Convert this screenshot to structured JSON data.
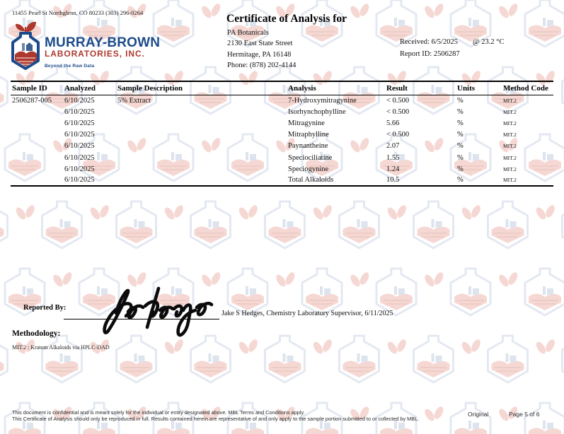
{
  "header": {
    "lab_address": "11455 Pearl St Northglenn, CO 80233 (303) 296-0264",
    "logo": {
      "name": "MURRAY-BROWN",
      "subname": "LABORATORIES, INC.",
      "tagline": "Beyond the Raw Data"
    },
    "title": "Certificate of Analysis for",
    "client": {
      "name": "PA Botanicals",
      "address_line1": "2130 East State Street",
      "address_line2": "Hermitage, PA 16148",
      "phone": "Phone:  (878) 202-4144"
    },
    "received": "Received:  6/5/2025",
    "received_temp": "@ 23.2 °C",
    "report_id": "Report ID:  2506287"
  },
  "table": {
    "columns": [
      "Sample ID",
      "Analyzed",
      "Sample Description",
      "Analysis",
      "Result",
      "Units",
      "Method Code"
    ],
    "rows": [
      {
        "sample_id": "2506287-005",
        "analyzed": "6/10/2025",
        "description": "5% Extract",
        "analysis": "7-Hydroxymitragynine",
        "result": "< 0.500",
        "units": "%",
        "method": "MIT.2"
      },
      {
        "sample_id": "",
        "analyzed": "6/10/2025",
        "description": "",
        "analysis": "Isorhynchophylline",
        "result": "< 0.500",
        "units": "%",
        "method": "MIT.2"
      },
      {
        "sample_id": "",
        "analyzed": "6/10/2025",
        "description": "",
        "analysis": "Mitragynine",
        "result": "5.66",
        "units": "%",
        "method": "MIT.2"
      },
      {
        "sample_id": "",
        "analyzed": "6/10/2025",
        "description": "",
        "analysis": "Mitraphylline",
        "result": "< 0.500",
        "units": "%",
        "method": "MIT.2"
      },
      {
        "sample_id": "",
        "analyzed": "6/10/2025",
        "description": "",
        "analysis": "Paynantheine",
        "result": "2.07",
        "units": "%",
        "method": "MIT.2"
      },
      {
        "sample_id": "",
        "analyzed": "6/10/2025",
        "description": "",
        "analysis": "Speciociliatine",
        "result": "1.55",
        "units": "%",
        "method": "MIT.2"
      },
      {
        "sample_id": "",
        "analyzed": "6/10/2025",
        "description": "",
        "analysis": "Speciogynine",
        "result": "1.24",
        "units": "%",
        "method": "MIT.2"
      },
      {
        "sample_id": "",
        "analyzed": "6/10/2025",
        "description": "",
        "analysis": "Total Alkaloids",
        "result": "10.5",
        "units": "%",
        "method": "MIT.2"
      }
    ]
  },
  "signature": {
    "reported_by_label": "Reported By:",
    "signer_line": "Jake S Hedges, Chemistry Laboratory Supervisor, 6/11/2025"
  },
  "methodology": {
    "heading": "Methodology:",
    "item": "MIT.2 :  Kratom Alkaloids via HPLC-DAD"
  },
  "footer": {
    "line1": "This document is confidential and is meant solely for the individual or entity designated above.  MBL Terms and Conditions apply.",
    "line2": "This Certificate of Analysis should only be reproduced in full.  Results contained herein are representative of and only apply to the sample portion submitted to or collected by MBL.",
    "copy_type": "Original",
    "page": "Page 5 of 6"
  },
  "colors": {
    "brand_blue": "#1c4b8b",
    "brand_red": "#ad392e",
    "pattern_hex_stroke": "#e3e8f1",
    "pattern_leaf_fill": "#f5d8d3"
  }
}
